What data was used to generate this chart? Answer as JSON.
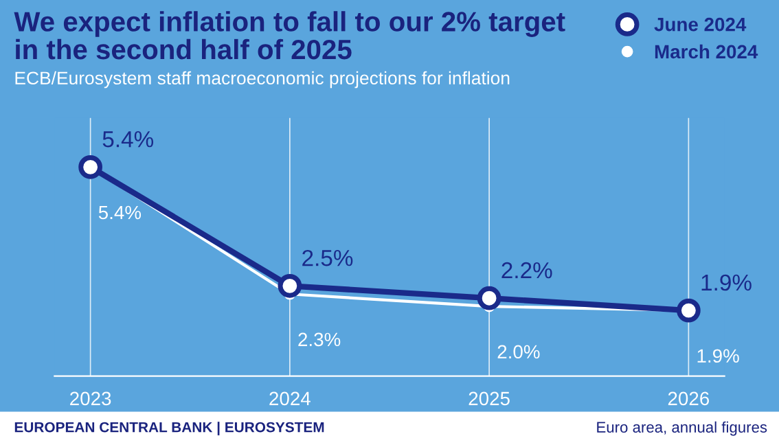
{
  "chart_data": {
    "type": "line",
    "title": "We expect inflation to fall to our 2% target\nin the second half of 2025",
    "subtitle": "ECB/Eurosystem staff macroeconomic projections for inflation",
    "categories": [
      "2023",
      "2024",
      "2025",
      "2026"
    ],
    "series": [
      {
        "name": "June 2024",
        "color": "#1a2a8a",
        "values": [
          5.4,
          2.5,
          2.2,
          1.9
        ],
        "value_labels": [
          "5.4%",
          "2.5%",
          "2.2%",
          "1.9%"
        ]
      },
      {
        "name": "March 2024",
        "color": "#ffffff",
        "values": [
          5.4,
          2.3,
          2.0,
          1.9
        ],
        "value_labels": [
          "5.4%",
          "2.3%",
          "2.0%",
          "1.9%"
        ]
      }
    ],
    "ylim": [
      0.3,
      6.6
    ],
    "grid": "x",
    "legend": "top right",
    "marker": "circle",
    "line_style": "solid",
    "annotations": [
      "EUROPEAN CENTRAL BANK | EUROSYSTEM",
      "Euro area, annual figures"
    ]
  }
}
